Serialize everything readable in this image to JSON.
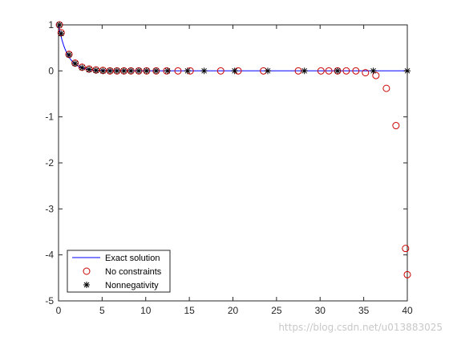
{
  "chart_data": {
    "type": "line",
    "title": "",
    "xlabel": "",
    "ylabel": "",
    "xlim": [
      0,
      40
    ],
    "ylim": [
      -5,
      1
    ],
    "xticks": [
      "0",
      "5",
      "10",
      "15",
      "20",
      "25",
      "30",
      "35",
      "40"
    ],
    "yticks": [
      "1",
      "0",
      "-1",
      "-2",
      "-3",
      "-4",
      "-5"
    ],
    "grid": false,
    "legend_position": "bottom-left",
    "series": [
      {
        "name": "Exact solution",
        "style": "line",
        "color": "#0000ff",
        "x": [
          0,
          0.2,
          0.4,
          0.6,
          0.8,
          1.0,
          1.2,
          1.4,
          1.6,
          1.8,
          2.0,
          2.4,
          2.8,
          3.2,
          3.6,
          4.0,
          4.5,
          5.0,
          6.0,
          7.0,
          8.0,
          10.0,
          15.0,
          20.0,
          25.0,
          30.0,
          35.0,
          40.0
        ],
        "y": [
          1.0,
          0.817,
          0.67,
          0.549,
          0.449,
          0.368,
          0.301,
          0.247,
          0.202,
          0.165,
          0.135,
          0.091,
          0.061,
          0.041,
          0.027,
          0.018,
          0.011,
          0.007,
          0.002,
          0.001,
          0.0,
          0.0,
          0.0,
          0.0,
          0.0,
          0.0,
          0.0,
          0.0
        ]
      },
      {
        "name": "No constraints",
        "style": "marker-circle",
        "color": "#cc0000",
        "x": [
          0.1,
          0.3,
          1.2,
          1.9,
          2.7,
          3.5,
          4.3,
          5.1,
          5.9,
          6.7,
          7.5,
          8.3,
          9.2,
          10.1,
          11.2,
          12.4,
          13.7,
          15.1,
          18.6,
          20.6,
          23.5,
          27.5,
          30.1,
          31.0,
          32.0,
          33.0,
          34.1,
          35.2,
          36.4,
          37.6,
          38.7,
          39.8,
          40.0
        ],
        "y": [
          1.0,
          0.83,
          0.36,
          0.17,
          0.08,
          0.04,
          0.02,
          0.01,
          0.0,
          0.0,
          0.0,
          0.0,
          0.0,
          0.0,
          0.0,
          0.0,
          0.0,
          0.0,
          0.0,
          0.0,
          0.0,
          0.0,
          0.0,
          0.0,
          0.0,
          0.0,
          0.0,
          -0.04,
          -0.1,
          -0.38,
          -1.19,
          -3.86,
          -4.43
        ]
      },
      {
        "name": "Nonnegativity",
        "style": "marker-asterisk",
        "color": "#000000",
        "x": [
          0.1,
          0.3,
          1.2,
          1.9,
          2.7,
          3.5,
          4.3,
          5.1,
          5.9,
          6.7,
          7.5,
          8.3,
          9.2,
          10.1,
          11.2,
          12.5,
          14.8,
          16.7,
          20.2,
          24.0,
          28.2,
          32.0,
          36.1,
          40.0
        ],
        "y": [
          1.0,
          0.81,
          0.35,
          0.16,
          0.07,
          0.03,
          0.01,
          0.0,
          0.0,
          0.0,
          0.0,
          0.0,
          0.0,
          0.0,
          0.0,
          0.0,
          0.0,
          0.0,
          0.0,
          0.0,
          0.0,
          0.0,
          0.0,
          0.0
        ]
      }
    ]
  },
  "legend": {
    "entries": [
      "Exact solution",
      "No constraints",
      "Nonnegativity"
    ]
  },
  "watermark": {
    "text": "https://blog.csdn.net/u013883025"
  }
}
